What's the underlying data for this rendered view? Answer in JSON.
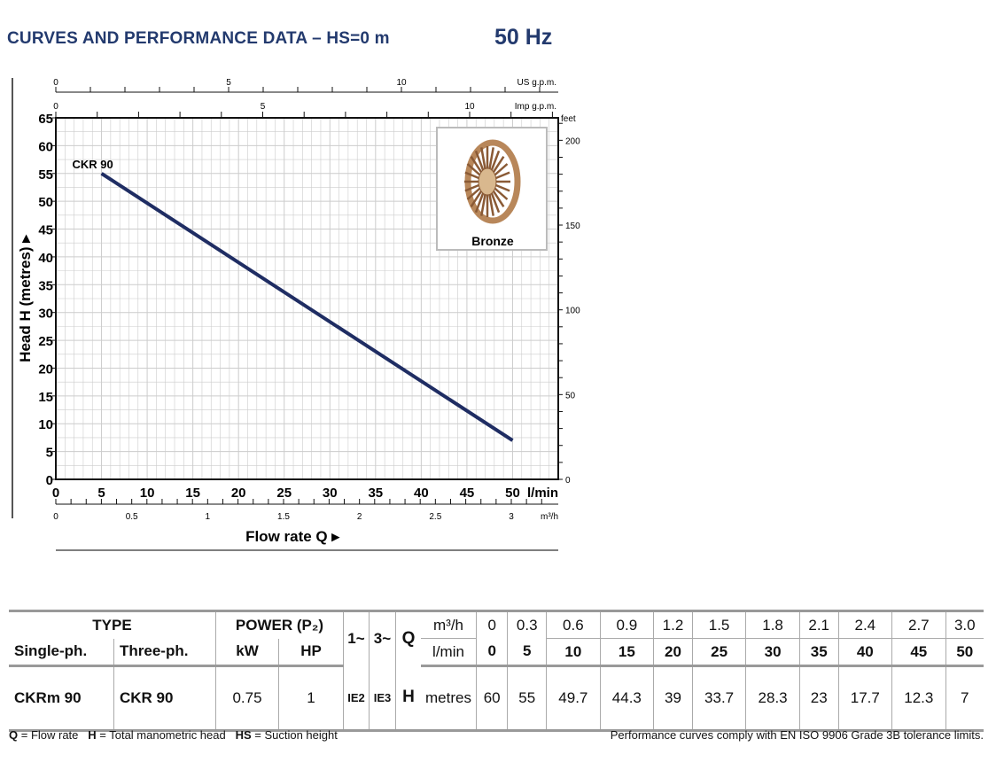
{
  "header": {
    "title": "CURVES AND PERFORMANCE DATA  –  HS=0 m",
    "frequency": "50 Hz"
  },
  "chart_data": {
    "type": "line",
    "title": "CURVES AND PERFORMANCE DATA – HS=0 m",
    "xlabel": "Flow rate Q",
    "ylabel": "Head H (metres)",
    "xunit": "l/min",
    "xlim": [
      0,
      55
    ],
    "ylim": [
      0,
      65
    ],
    "xticks": [
      0,
      5,
      10,
      15,
      20,
      25,
      30,
      35,
      40,
      45,
      50
    ],
    "yticks": [
      0,
      5,
      10,
      15,
      20,
      25,
      30,
      35,
      40,
      45,
      50,
      55,
      60,
      65
    ],
    "series": [
      {
        "name": "CKR 90",
        "x": [
          5,
          50
        ],
        "y": [
          55,
          7
        ]
      }
    ],
    "secondary_axes": {
      "us_gpm": {
        "label": "US g.p.m.",
        "ticks": [
          0,
          5,
          10
        ]
      },
      "imp_gpm": {
        "label": "Imp g.p.m.",
        "ticks": [
          0,
          5,
          10
        ]
      },
      "m3h": {
        "label": "m³/h",
        "ticks": [
          "0",
          "0.5",
          "1",
          "1.5",
          "2",
          "2.5",
          "3"
        ]
      },
      "feet": {
        "label": "feet",
        "ticks": [
          0,
          50,
          100,
          150,
          200
        ]
      }
    },
    "grid": true,
    "inset_label": "Bronze"
  },
  "table": {
    "type": "TYPE",
    "power": "POWER (P₂)",
    "single": "Single-ph.",
    "three": "Three-ph.",
    "kw": "kW",
    "hp": "HP",
    "ph1": "1~",
    "ph3": "3~",
    "q": "Q",
    "m3h": "m³/h",
    "lmin": "l/min",
    "h": "H",
    "metres": "metres",
    "m3h_values": [
      "0",
      "0.3",
      "0.6",
      "0.9",
      "1.2",
      "1.5",
      "1.8",
      "2.1",
      "2.4",
      "2.7",
      "3.0"
    ],
    "lmin_values": [
      "0",
      "5",
      "10",
      "15",
      "20",
      "25",
      "30",
      "35",
      "40",
      "45",
      "50"
    ],
    "rows": [
      {
        "single": "CKRm 90",
        "three": "CKR 90",
        "kw": "0.75",
        "hp": "1",
        "ie1": "IE2",
        "ie3": "IE3",
        "h_values": [
          "60",
          "55",
          "49.7",
          "44.3",
          "39",
          "33.7",
          "28.3",
          "23",
          "17.7",
          "12.3",
          "7"
        ]
      }
    ]
  },
  "footer": {
    "q_abbr": "Q",
    "q_def": " = Flow rate   ",
    "h_abbr": "H",
    "h_def": " = Total manometric head   ",
    "hs_abbr": "HS",
    "hs_def": " = Suction height",
    "note": "Performance curves comply with EN ISO 9906 Grade 3B tolerance limits."
  }
}
